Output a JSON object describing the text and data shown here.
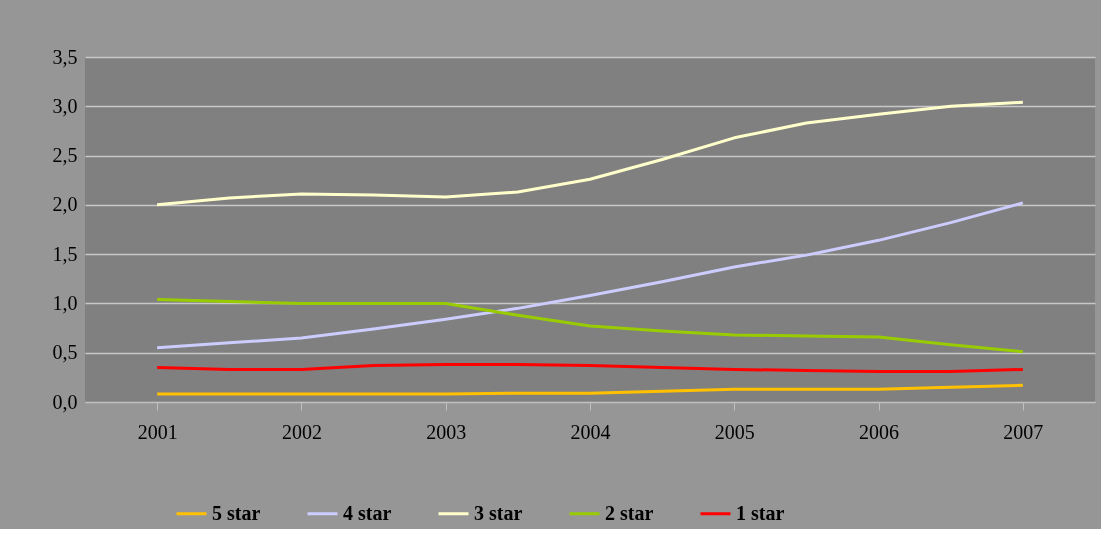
{
  "chart_data": {
    "type": "line",
    "x": [
      2001,
      2001.5,
      2002,
      2002.5,
      2003,
      2003.5,
      2004,
      2004.5,
      2005,
      2005.5,
      2006,
      2006.5,
      2007
    ],
    "xlim": [
      2000.5,
      2007.5
    ],
    "xticks": [
      2001,
      2002,
      2003,
      2004,
      2005,
      2006,
      2007
    ],
    "ylim": [
      0,
      3.5
    ],
    "yticks": [
      {
        "value": 0,
        "label": "0,0"
      },
      {
        "value": 0.5,
        "label": "0,5"
      },
      {
        "value": 1,
        "label": "1,0"
      },
      {
        "value": 1.5,
        "label": "1,5"
      },
      {
        "value": 2,
        "label": "2,0"
      },
      {
        "value": 2.5,
        "label": "2,5"
      },
      {
        "value": 3,
        "label": "3,0"
      },
      {
        "value": 3.5,
        "label": "3,5"
      }
    ],
    "grid": "y",
    "legend": "bottom",
    "marker": "none",
    "line_style": "solid",
    "series": [
      {
        "name": "5 star",
        "color": "#ffc000",
        "values": [
          0.08,
          0.08,
          0.08,
          0.08,
          0.08,
          0.09,
          0.09,
          0.11,
          0.13,
          0.13,
          0.13,
          0.15,
          0.17
        ]
      },
      {
        "name": "4 star",
        "color": "#ccccff",
        "values": [
          0.55,
          0.6,
          0.65,
          0.74,
          0.84,
          0.95,
          1.08,
          1.22,
          1.37,
          1.49,
          1.64,
          1.82,
          2.02
        ]
      },
      {
        "name": "3 star",
        "color": "#ffffcc",
        "values": [
          2.0,
          2.07,
          2.11,
          2.1,
          2.08,
          2.13,
          2.26,
          2.46,
          2.68,
          2.83,
          2.92,
          3.0,
          3.04
        ]
      },
      {
        "name": "2 star",
        "color": "#99cc00",
        "values": [
          1.04,
          1.02,
          1.0,
          1.0,
          1.0,
          0.88,
          0.77,
          0.72,
          0.68,
          0.67,
          0.66,
          0.58,
          0.51
        ]
      },
      {
        "name": "1 star",
        "color": "#ff0000",
        "values": [
          0.35,
          0.33,
          0.33,
          0.37,
          0.38,
          0.38,
          0.37,
          0.35,
          0.33,
          0.32,
          0.31,
          0.31,
          0.33
        ]
      }
    ]
  }
}
